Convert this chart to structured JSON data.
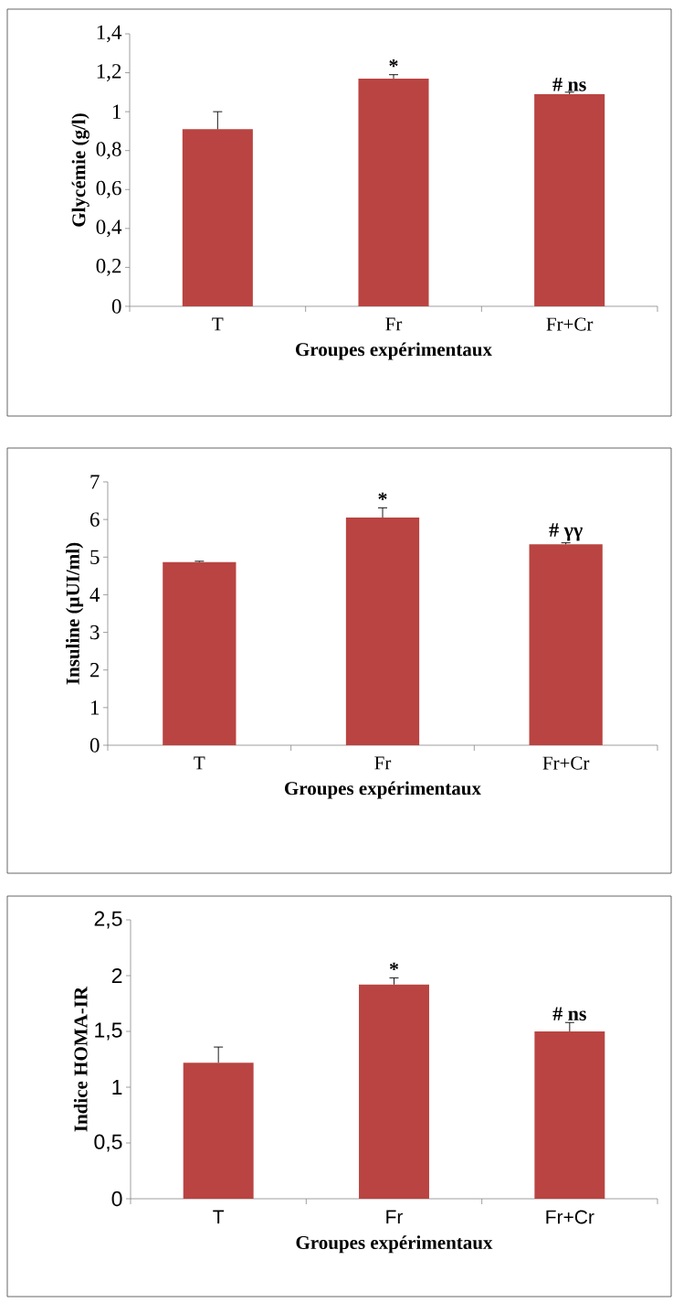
{
  "chart_data": [
    {
      "type": "bar",
      "categories": [
        "T",
        "Fr",
        "Fr+Cr"
      ],
      "values": [
        0.91,
        1.17,
        1.09
      ],
      "errors": [
        0.09,
        0.02,
        0.01
      ],
      "color": "#b94441",
      "ylim": [
        0,
        1.4
      ],
      "yticks": [
        0,
        {
          "value": 0.2,
          "label": "0,2"
        },
        {
          "value": 0.4,
          "label": "0,4"
        },
        {
          "value": 0.6,
          "label": "0,6"
        },
        {
          "value": 0.8,
          "label": "0,8"
        },
        1,
        {
          "value": 1.2,
          "label": "1,2"
        },
        {
          "value": 1.4,
          "label": "1,4"
        }
      ],
      "ylabel": "Glycémie (g/l)",
      "xlabel": "Groupes expérimentaux",
      "annotations": [
        {
          "text": "*",
          "x": "Fr",
          "y": 1.19
        },
        {
          "text": "# ns",
          "x": "Fr+Cr",
          "y": 1.095
        }
      ]
    },
    {
      "type": "bar",
      "categories": [
        "T",
        "Fr",
        "Fr+Cr"
      ],
      "values": [
        4.87,
        6.05,
        5.34
      ],
      "errors": [
        0.02,
        0.26,
        0.04
      ],
      "color": "#b94441",
      "ylim": [
        0,
        7
      ],
      "yticks": [
        0,
        1,
        2,
        3,
        4,
        5,
        6,
        7
      ],
      "ylabel": "Insuline (µUI/ml)",
      "xlabel": "Groupes expérimentaux",
      "annotations": [
        {
          "text": "*",
          "x": "Fr",
          "y": 6.31
        },
        {
          "text": "# γγ",
          "x": "Fr+Cr",
          "y": 5.38
        }
      ]
    },
    {
      "type": "bar",
      "categories": [
        "T",
        "Fr",
        "Fr+Cr"
      ],
      "values": [
        1.22,
        1.92,
        1.5
      ],
      "errors": [
        0.14,
        0.06,
        0.08
      ],
      "color": "#b94441",
      "ylim": [
        0,
        2.5
      ],
      "yticks": [
        0,
        {
          "value": 0.5,
          "label": "0,5"
        },
        1,
        {
          "value": 1.5,
          "label": "1,5"
        },
        2,
        {
          "value": 2.5,
          "label": "2,5"
        }
      ],
      "ylabel": "Indice HOMA-IR",
      "xlabel": "Groupes expérimentaux",
      "annotations": [
        {
          "text": "*",
          "x": "Fr",
          "y": 1.98
        },
        {
          "text": "# ns",
          "x": "Fr+Cr",
          "y": 1.58
        }
      ]
    }
  ]
}
